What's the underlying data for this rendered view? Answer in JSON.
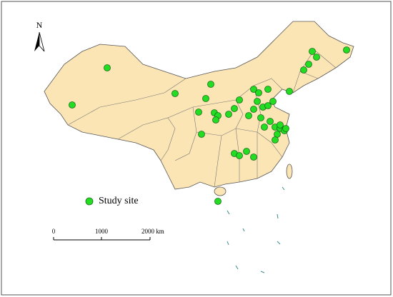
{
  "north_arrow": {
    "label": "N"
  },
  "legend": {
    "label": "Study site"
  },
  "scale_bar": {
    "labels": [
      "0",
      "1000",
      "2000 km"
    ]
  }
}
